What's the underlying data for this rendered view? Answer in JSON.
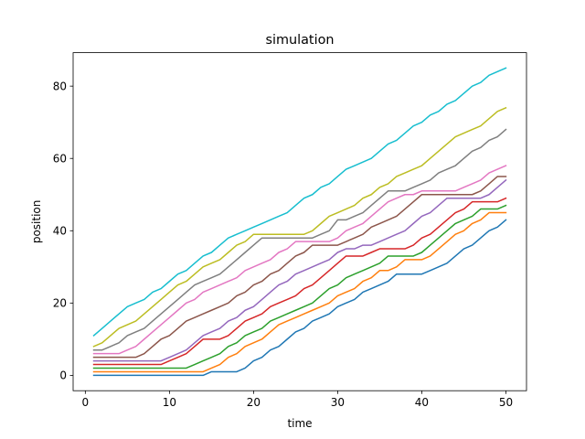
{
  "chart_data": {
    "type": "line",
    "title": "simulation",
    "xlabel": "time",
    "ylabel": "position",
    "xlim": [
      -1.45,
      52.45
    ],
    "ylim": [
      -4.25,
      89.25
    ],
    "xticks": [
      0,
      10,
      20,
      30,
      40,
      50
    ],
    "yticks": [
      0,
      20,
      40,
      60,
      80
    ],
    "grid": false,
    "legend": "none",
    "x": [
      1,
      2,
      3,
      4,
      5,
      6,
      7,
      8,
      9,
      10,
      11,
      12,
      13,
      14,
      15,
      16,
      17,
      18,
      19,
      20,
      21,
      22,
      23,
      24,
      25,
      26,
      27,
      28,
      29,
      30,
      31,
      32,
      33,
      34,
      35,
      36,
      37,
      38,
      39,
      40,
      41,
      42,
      43,
      44,
      45,
      46,
      47,
      48,
      49,
      50
    ],
    "series": [
      {
        "color": "#1f77b4",
        "values": [
          0,
          0,
          0,
          0,
          0,
          0,
          0,
          0,
          0,
          0,
          0,
          0,
          0,
          0,
          1,
          1,
          1,
          1,
          2,
          4,
          5,
          7,
          8,
          10,
          12,
          13,
          15,
          16,
          17,
          19,
          20,
          21,
          23,
          24,
          25,
          26,
          28,
          28,
          28,
          28,
          29,
          30,
          31,
          33,
          35,
          36,
          38,
          40,
          41,
          43
        ]
      },
      {
        "color": "#ff7f0e",
        "values": [
          1,
          1,
          1,
          1,
          1,
          1,
          1,
          1,
          1,
          1,
          1,
          1,
          1,
          1,
          2,
          3,
          5,
          6,
          8,
          9,
          10,
          12,
          14,
          15,
          16,
          17,
          18,
          19,
          20,
          22,
          23,
          24,
          26,
          27,
          29,
          29,
          30,
          32,
          32,
          32,
          33,
          35,
          37,
          39,
          40,
          42,
          43,
          45,
          45,
          45
        ]
      },
      {
        "color": "#2ca02c",
        "values": [
          2,
          2,
          2,
          2,
          2,
          2,
          2,
          2,
          2,
          2,
          2,
          2,
          3,
          4,
          5,
          6,
          8,
          9,
          11,
          12,
          13,
          15,
          16,
          17,
          18,
          19,
          20,
          22,
          24,
          25,
          27,
          28,
          29,
          30,
          31,
          33,
          33,
          33,
          33,
          34,
          36,
          38,
          40,
          42,
          43,
          44,
          46,
          46,
          46,
          47
        ]
      },
      {
        "color": "#d62728",
        "values": [
          3,
          3,
          3,
          3,
          3,
          3,
          3,
          3,
          3,
          4,
          5,
          6,
          8,
          10,
          10,
          10,
          11,
          13,
          15,
          16,
          17,
          19,
          20,
          21,
          22,
          24,
          25,
          27,
          29,
          31,
          33,
          33,
          33,
          34,
          35,
          35,
          35,
          35,
          36,
          38,
          39,
          41,
          43,
          45,
          46,
          48,
          48,
          48,
          48,
          49
        ]
      },
      {
        "color": "#9467bd",
        "values": [
          4,
          4,
          4,
          4,
          4,
          4,
          4,
          4,
          4,
          5,
          6,
          7,
          9,
          11,
          12,
          13,
          15,
          16,
          18,
          19,
          21,
          23,
          25,
          26,
          28,
          29,
          30,
          31,
          32,
          34,
          35,
          35,
          36,
          36,
          37,
          38,
          39,
          40,
          42,
          44,
          45,
          47,
          49,
          49,
          49,
          49,
          49,
          50,
          52,
          54
        ]
      },
      {
        "color": "#8c564b",
        "values": [
          5,
          5,
          5,
          5,
          5,
          5,
          6,
          8,
          10,
          11,
          13,
          15,
          16,
          17,
          18,
          19,
          20,
          22,
          23,
          25,
          26,
          28,
          29,
          31,
          33,
          34,
          36,
          36,
          36,
          36,
          37,
          38,
          39,
          41,
          42,
          43,
          44,
          46,
          48,
          50,
          50,
          50,
          50,
          50,
          50,
          50,
          51,
          53,
          55,
          55
        ]
      },
      {
        "color": "#e377c2",
        "values": [
          6,
          6,
          6,
          6,
          7,
          8,
          10,
          12,
          14,
          16,
          18,
          20,
          21,
          23,
          24,
          25,
          26,
          27,
          29,
          30,
          31,
          32,
          34,
          35,
          37,
          37,
          37,
          37,
          37,
          38,
          40,
          41,
          42,
          44,
          46,
          48,
          49,
          50,
          50,
          51,
          51,
          51,
          51,
          51,
          52,
          53,
          54,
          56,
          57,
          58
        ]
      },
      {
        "color": "#7f7f7f",
        "values": [
          7,
          7,
          8,
          9,
          11,
          12,
          13,
          15,
          17,
          19,
          21,
          23,
          25,
          26,
          27,
          28,
          30,
          32,
          34,
          36,
          38,
          38,
          38,
          38,
          38,
          38,
          38,
          39,
          40,
          43,
          43,
          44,
          45,
          47,
          49,
          51,
          51,
          51,
          52,
          53,
          54,
          56,
          57,
          58,
          60,
          62,
          63,
          65,
          66,
          68
        ]
      },
      {
        "color": "#bcbd22",
        "values": [
          8,
          9,
          11,
          13,
          14,
          15,
          17,
          19,
          21,
          23,
          25,
          26,
          28,
          30,
          31,
          32,
          34,
          36,
          37,
          39,
          39,
          39,
          39,
          39,
          39,
          39,
          40,
          42,
          44,
          45,
          46,
          47,
          49,
          50,
          52,
          53,
          55,
          56,
          57,
          58,
          60,
          62,
          64,
          66,
          67,
          68,
          69,
          71,
          73,
          74
        ]
      },
      {
        "color": "#17becf",
        "values": [
          11,
          13,
          15,
          17,
          19,
          20,
          21,
          23,
          24,
          26,
          28,
          29,
          31,
          33,
          34,
          36,
          38,
          39,
          40,
          41,
          42,
          43,
          44,
          45,
          47,
          49,
          50,
          52,
          53,
          55,
          57,
          58,
          59,
          60,
          62,
          64,
          65,
          67,
          69,
          70,
          72,
          73,
          75,
          76,
          78,
          80,
          81,
          83,
          84,
          85
        ]
      }
    ]
  }
}
